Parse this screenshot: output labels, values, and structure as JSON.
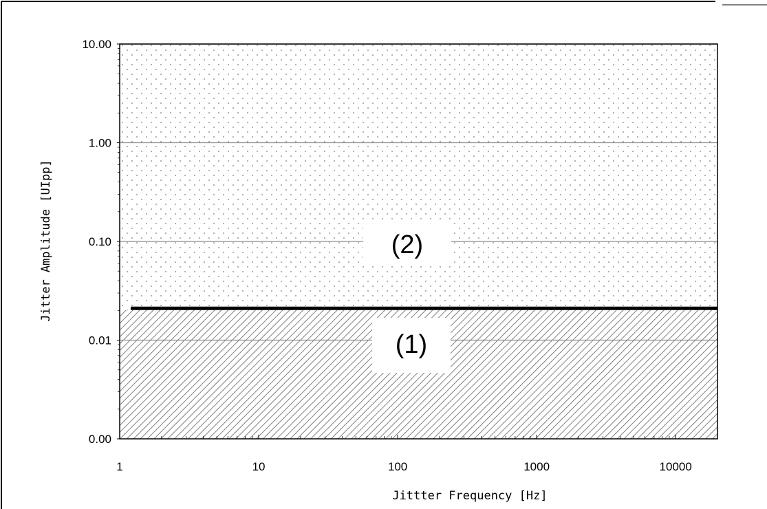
{
  "chart_data": {
    "type": "area",
    "title": "",
    "xlabel": "Jittter Frequency [Hz]",
    "ylabel": "Jitter Amplitude [UIpp]",
    "x_scale": "log",
    "y_scale": "log",
    "xlim": [
      1,
      20000
    ],
    "ylim": [
      0.001,
      10
    ],
    "x_ticks": [
      1,
      10,
      100,
      1000,
      10000
    ],
    "x_tick_labels": [
      "1",
      "10",
      "100",
      "1000",
      "10000"
    ],
    "y_ticks": [
      0.001,
      0.01,
      0.1,
      1,
      10
    ],
    "y_tick_labels": [
      "0.00",
      "0.01",
      "0.10",
      "1.00",
      "10.00"
    ],
    "grid": true,
    "boundary": {
      "x": [
        1.2,
        20000
      ],
      "y": [
        0.021,
        0.021
      ]
    },
    "regions": [
      {
        "label": "(1)",
        "y_range": [
          0.001,
          0.021
        ],
        "fill": "hatched"
      },
      {
        "label": "(2)",
        "y_range": [
          0.021,
          10
        ],
        "fill": "dotted"
      }
    ],
    "colors": {
      "grid": "#8c8c8c",
      "boundary": "#000000",
      "hatch": "#606060",
      "dots": "#9a9a9a"
    }
  }
}
